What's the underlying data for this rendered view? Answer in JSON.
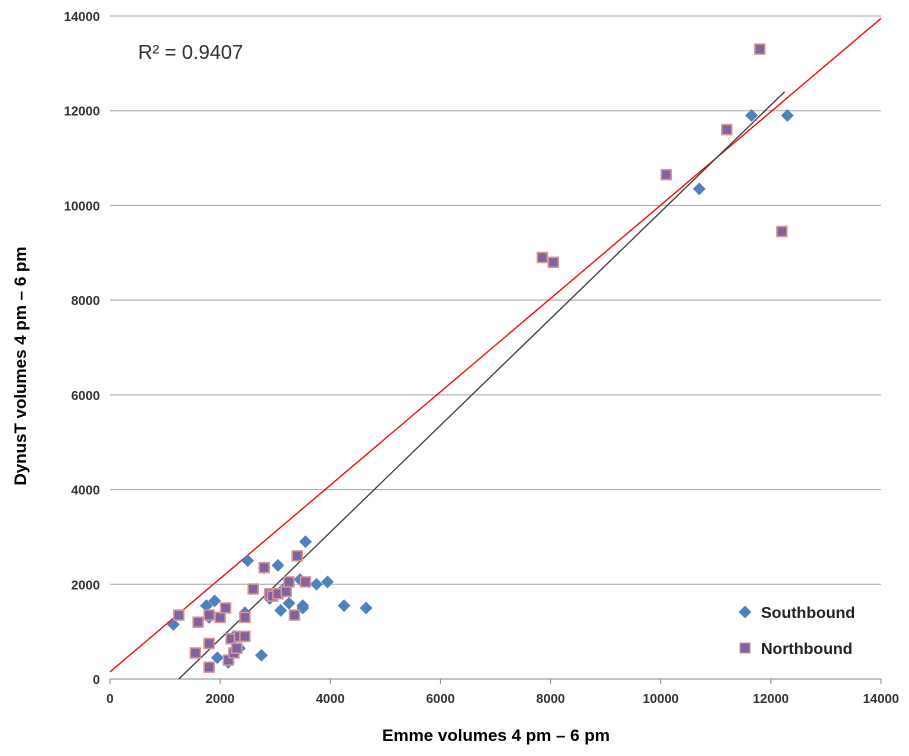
{
  "chart_data": {
    "type": "scatter",
    "xlabel": "Emme volumes 4 pm – 6 pm",
    "ylabel": "DynusT volumes 4 pm – 6 pm",
    "annotation": "R² = 0.9407",
    "xlim": [
      0,
      14000
    ],
    "ylim": [
      0,
      14000
    ],
    "x_ticks": [
      "0",
      "2000",
      "4000",
      "6000",
      "8000",
      "10000",
      "12000",
      "14000"
    ],
    "y_ticks": [
      "0",
      "2000",
      "4000",
      "6000",
      "8000",
      "10000",
      "12000",
      "14000"
    ],
    "grid": "horizontal",
    "legend_position": "bottom-right",
    "series": [
      {
        "name": "Southbound",
        "marker": "diamond",
        "color": "#4f81bd",
        "points": [
          [
            1150,
            1150
          ],
          [
            1750,
            1550
          ],
          [
            1900,
            1650
          ],
          [
            1950,
            450
          ],
          [
            2150,
            350
          ],
          [
            2350,
            650
          ],
          [
            2450,
            1400
          ],
          [
            2500,
            2500
          ],
          [
            2750,
            500
          ],
          [
            2800,
            2350
          ],
          [
            3050,
            2400
          ],
          [
            3100,
            1450
          ],
          [
            3250,
            1600
          ],
          [
            3450,
            2100
          ],
          [
            3500,
            1500
          ],
          [
            3500,
            1550
          ],
          [
            3550,
            2900
          ],
          [
            3750,
            2000
          ],
          [
            3950,
            2050
          ],
          [
            4250,
            1550
          ],
          [
            4650,
            1500
          ],
          [
            10700,
            10350
          ],
          [
            11650,
            11900
          ],
          [
            12300,
            11900
          ],
          [
            2900,
            1700
          ],
          [
            3150,
            1900
          ],
          [
            2250,
            900
          ],
          [
            1800,
            1300
          ]
        ]
      },
      {
        "name": "Northbound",
        "marker": "square",
        "color": "#8064a2",
        "points": [
          [
            1250,
            1350
          ],
          [
            1550,
            550
          ],
          [
            1600,
            1200
          ],
          [
            1800,
            1350
          ],
          [
            1800,
            750
          ],
          [
            1800,
            250
          ],
          [
            2000,
            1300
          ],
          [
            2100,
            1500
          ],
          [
            2150,
            400
          ],
          [
            2200,
            850
          ],
          [
            2250,
            550
          ],
          [
            2300,
            650
          ],
          [
            2350,
            900
          ],
          [
            2450,
            900
          ],
          [
            2450,
            1300
          ],
          [
            2600,
            1900
          ],
          [
            2800,
            2350
          ],
          [
            2900,
            1800
          ],
          [
            2950,
            1750
          ],
          [
            3050,
            1800
          ],
          [
            3200,
            1850
          ],
          [
            3250,
            2050
          ],
          [
            3350,
            1350
          ],
          [
            3400,
            2600
          ],
          [
            3550,
            2050
          ],
          [
            7850,
            8900
          ],
          [
            8050,
            8800
          ],
          [
            10100,
            10650
          ],
          [
            11200,
            11600
          ],
          [
            11800,
            13300
          ],
          [
            12200,
            9450
          ]
        ]
      }
    ],
    "lines": [
      {
        "name": "",
        "color": "#ff0000",
        "from": [
          0,
          150
        ],
        "to": [
          14000,
          13950
        ]
      },
      {
        "name": "",
        "color": "#404040",
        "from": [
          1250,
          0
        ],
        "to": [
          12250,
          12400
        ]
      }
    ]
  }
}
